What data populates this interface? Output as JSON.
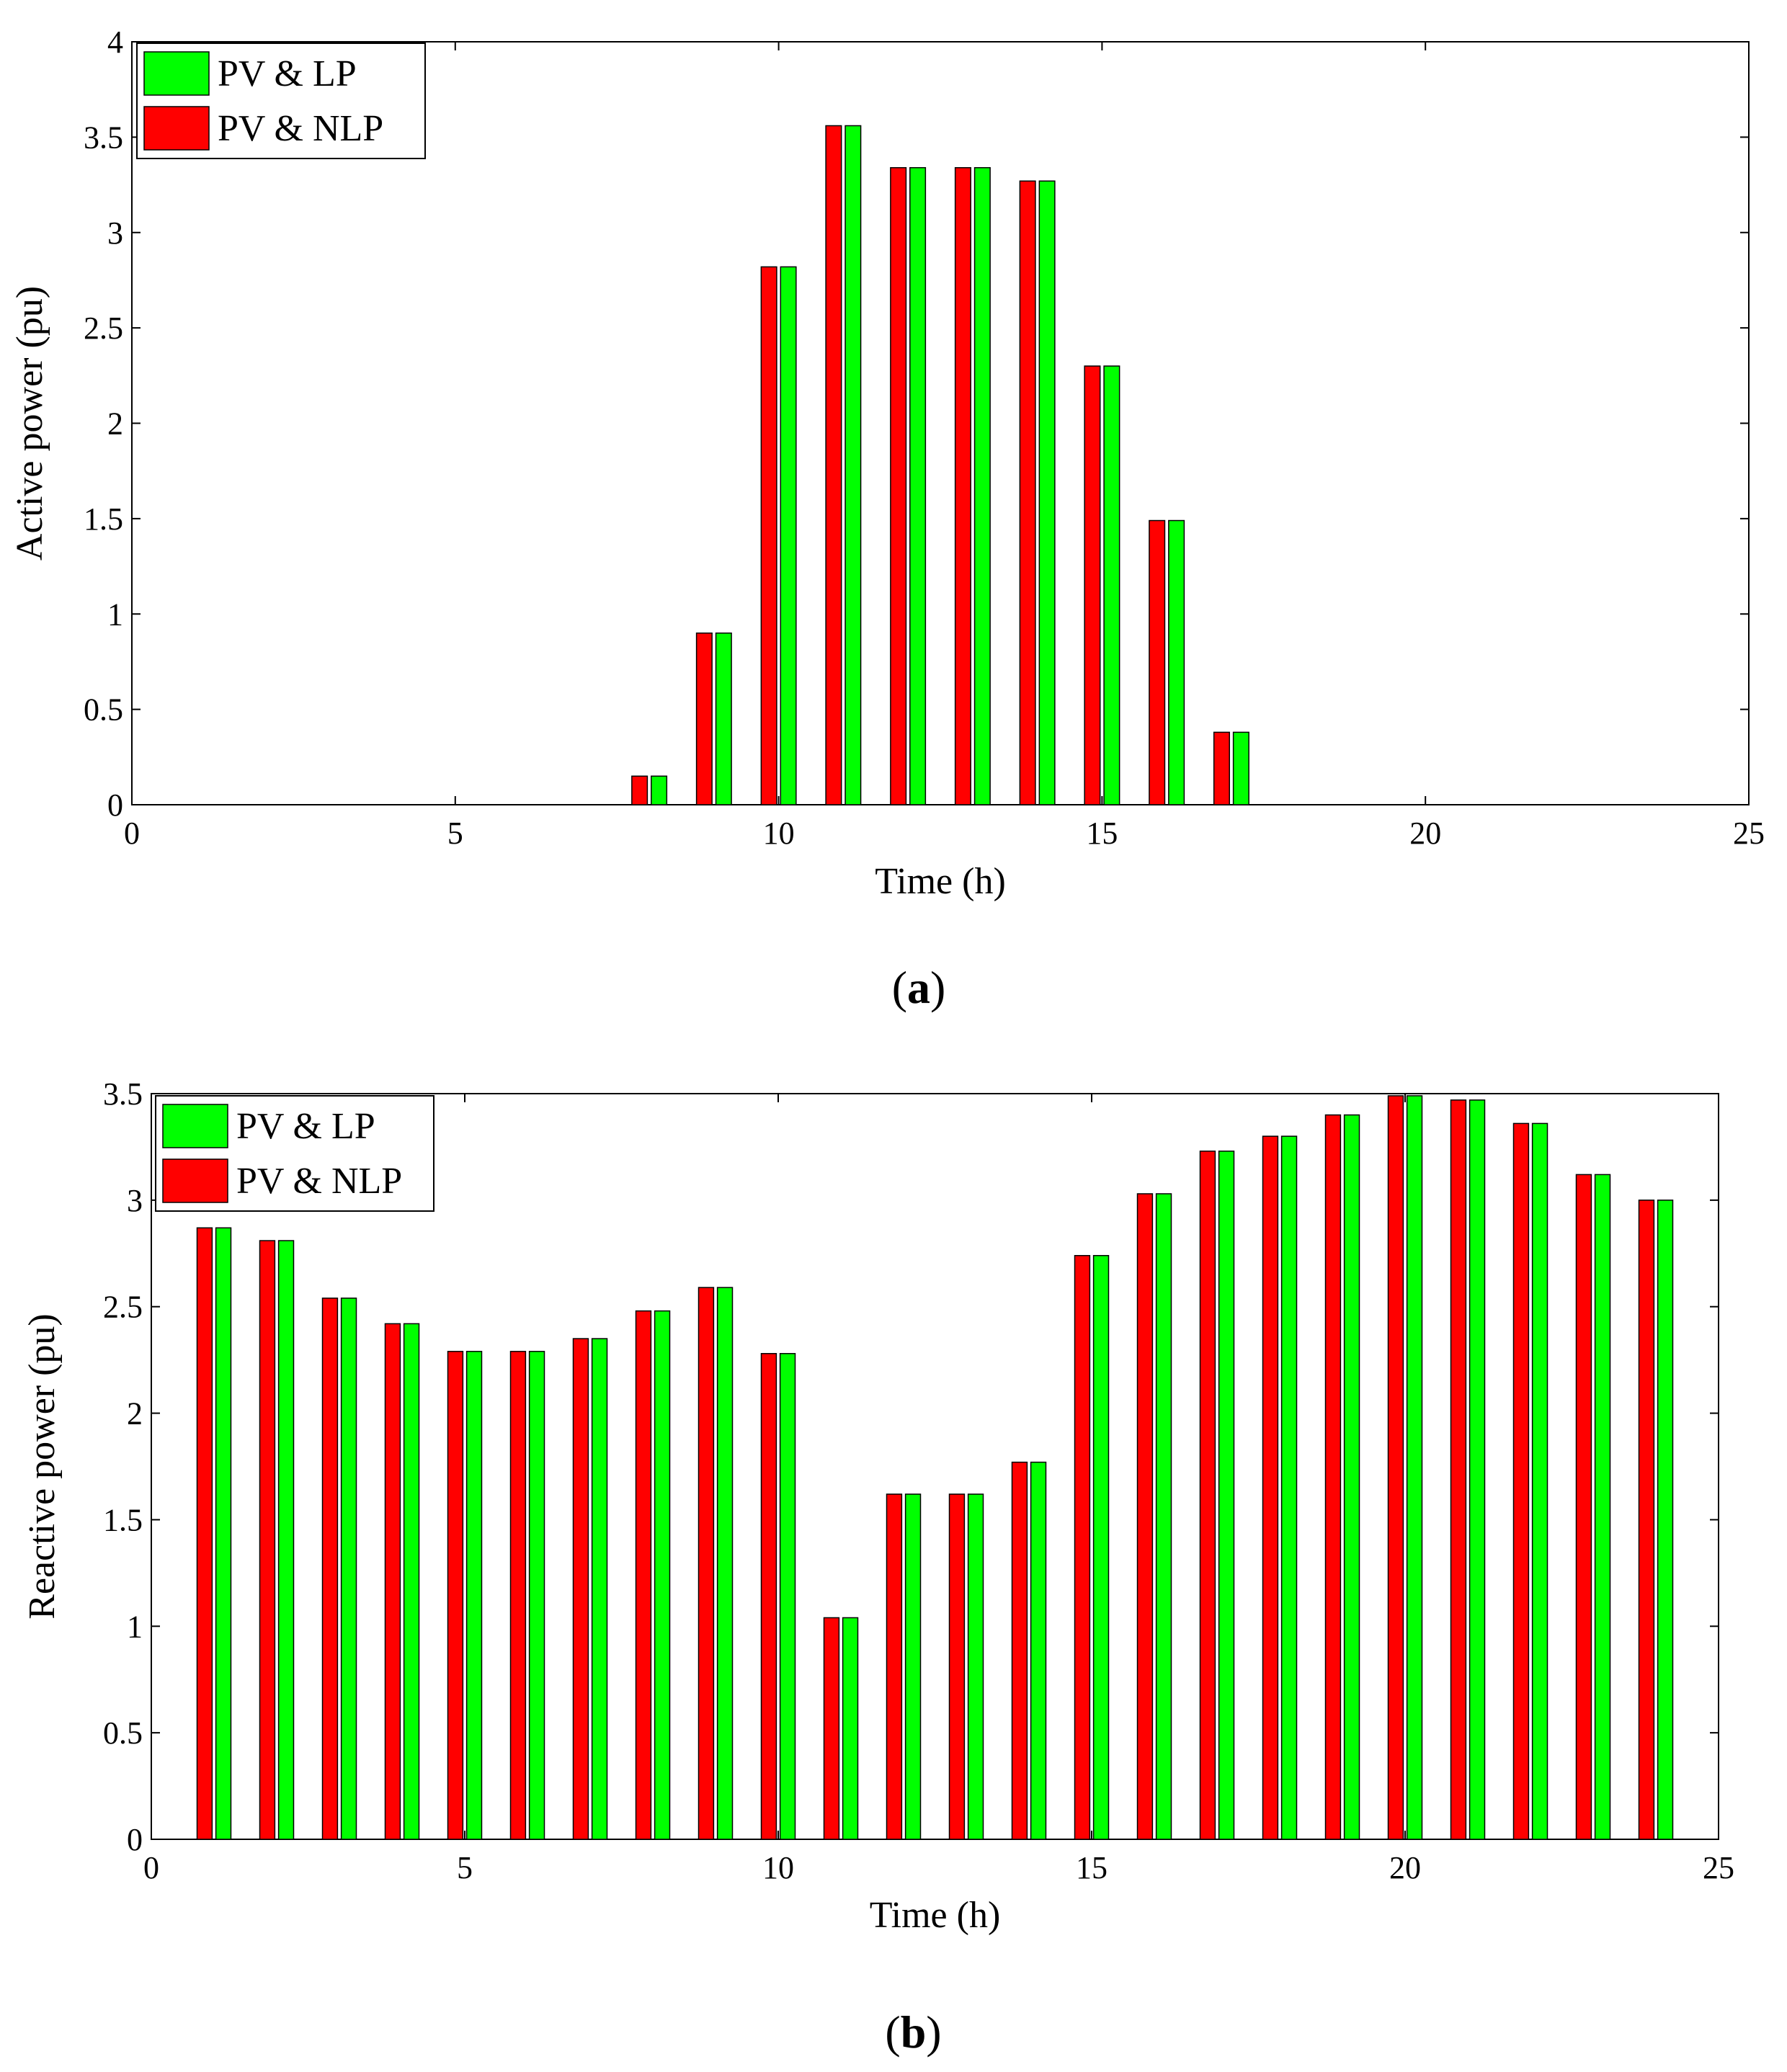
{
  "colors": {
    "series_nlp": "#ff0000",
    "series_lp": "#00ff00",
    "axis": "#000000",
    "background": "#ffffff"
  },
  "chart_data": [
    {
      "type": "bar",
      "caption": "a",
      "xlabel": "Time (h)",
      "ylabel": "Active power (pu)",
      "xlim": [
        0,
        25
      ],
      "ylim": [
        0,
        4
      ],
      "xticks": [
        "0",
        "5",
        "10",
        "15",
        "20",
        "25"
      ],
      "yticks": [
        "0",
        "0.5",
        "1",
        "1.5",
        "2",
        "2.5",
        "3",
        "3.5",
        "4"
      ],
      "legend": {
        "placement": "top-left",
        "entries": [
          "PV & LP",
          "PV & NLP"
        ]
      },
      "x": [
        1,
        2,
        3,
        4,
        5,
        6,
        7,
        8,
        9,
        10,
        11,
        12,
        13,
        14,
        15,
        16,
        17,
        18,
        19,
        20,
        21,
        22,
        23,
        24
      ],
      "series": [
        {
          "name": "PV & NLP",
          "values": [
            0,
            0,
            0,
            0,
            0,
            0,
            0,
            0.15,
            0.9,
            2.82,
            3.56,
            3.34,
            3.34,
            3.27,
            2.3,
            1.49,
            0.38,
            0,
            0,
            0,
            0,
            0,
            0,
            0
          ]
        },
        {
          "name": "PV & LP",
          "values": [
            0,
            0,
            0,
            0,
            0,
            0,
            0,
            0.15,
            0.9,
            2.82,
            3.56,
            3.34,
            3.34,
            3.27,
            2.3,
            1.49,
            0.38,
            0,
            0,
            0,
            0,
            0,
            0,
            0
          ]
        }
      ]
    },
    {
      "type": "bar",
      "caption": "b",
      "xlabel": "Time (h)",
      "ylabel": "Reactive power (pu)",
      "xlim": [
        0,
        25
      ],
      "ylim": [
        0,
        3.5
      ],
      "xticks": [
        "0",
        "5",
        "10",
        "15",
        "20",
        "25"
      ],
      "yticks": [
        "0",
        "0.5",
        "1",
        "1.5",
        "2",
        "2.5",
        "3",
        "3.5"
      ],
      "legend": {
        "placement": "top-left",
        "entries": [
          "PV & LP",
          "PV & NLP"
        ]
      },
      "x": [
        1,
        2,
        3,
        4,
        5,
        6,
        7,
        8,
        9,
        10,
        11,
        12,
        13,
        14,
        15,
        16,
        17,
        18,
        19,
        20,
        21,
        22,
        23,
        24
      ],
      "series": [
        {
          "name": "PV & NLP",
          "values": [
            2.87,
            2.81,
            2.54,
            2.42,
            2.29,
            2.29,
            2.35,
            2.48,
            2.59,
            2.28,
            1.04,
            1.62,
            1.62,
            1.77,
            2.74,
            3.03,
            3.23,
            3.3,
            3.4,
            3.49,
            3.47,
            3.36,
            3.12,
            3.0
          ]
        },
        {
          "name": "PV & LP",
          "values": [
            2.87,
            2.81,
            2.54,
            2.42,
            2.29,
            2.29,
            2.35,
            2.48,
            2.59,
            2.28,
            1.04,
            1.62,
            1.62,
            1.77,
            2.74,
            3.03,
            3.23,
            3.3,
            3.4,
            3.49,
            3.47,
            3.36,
            3.12,
            3.0
          ]
        }
      ]
    }
  ]
}
